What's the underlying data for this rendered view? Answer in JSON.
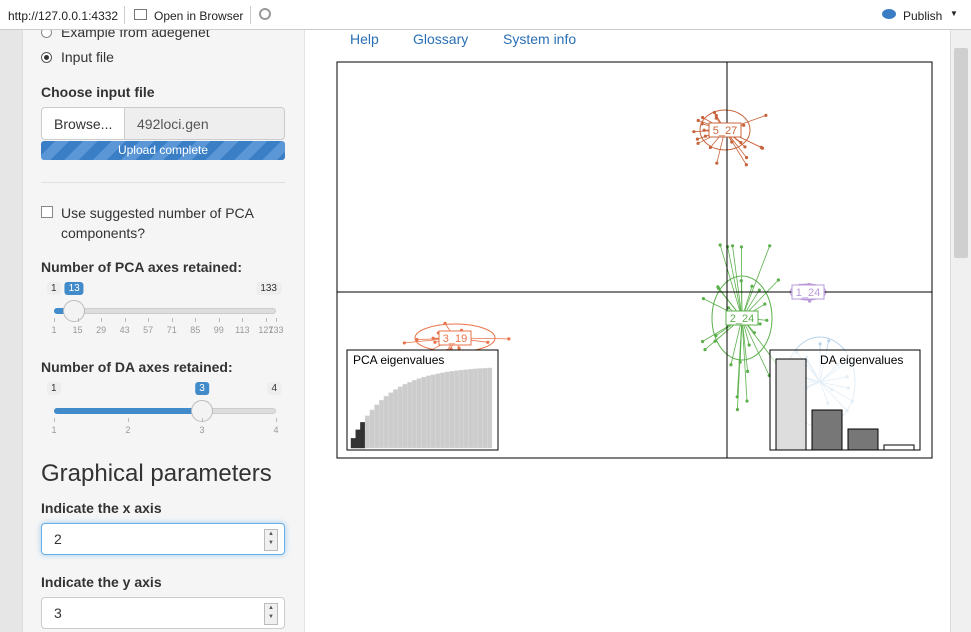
{
  "browser_bar": {
    "url": "http://127.0.0.1:4332",
    "open_in_browser": "Open in Browser",
    "publish": "Publish"
  },
  "sidebar": {
    "data_source_options": [
      "Example from adegenet",
      "Input file"
    ],
    "file_input": {
      "label": "Choose input file",
      "button": "Browse...",
      "filename": "492loci.gen",
      "progress": "Upload complete"
    },
    "suggested_pca": "Use suggested number of PCA components?",
    "pca_slider": {
      "label": "Number of PCA axes retained:",
      "min": 1,
      "max": 133,
      "value": 13,
      "ticks": [
        1,
        15,
        29,
        43,
        57,
        71,
        85,
        99,
        113,
        127,
        133
      ]
    },
    "da_slider": {
      "label": "Number of DA axes retained:",
      "min": 1,
      "max": 4,
      "value": 3,
      "ticks": [
        1,
        2,
        3,
        4
      ]
    },
    "graphical_heading": "Graphical parameters",
    "x_axis": {
      "label": "Indicate the x axis",
      "value": 2
    },
    "y_axis": {
      "label": "Indicate the y axis",
      "value": 3
    }
  },
  "tabs": [
    "Help",
    "Glossary",
    "System info"
  ],
  "plot": {
    "group_labels": [
      "5_27",
      "1_24",
      "2_24",
      "3_19"
    ],
    "pca_inset_title": "PCA eigenvalues",
    "da_inset_title": "DA eigenvalues"
  }
}
